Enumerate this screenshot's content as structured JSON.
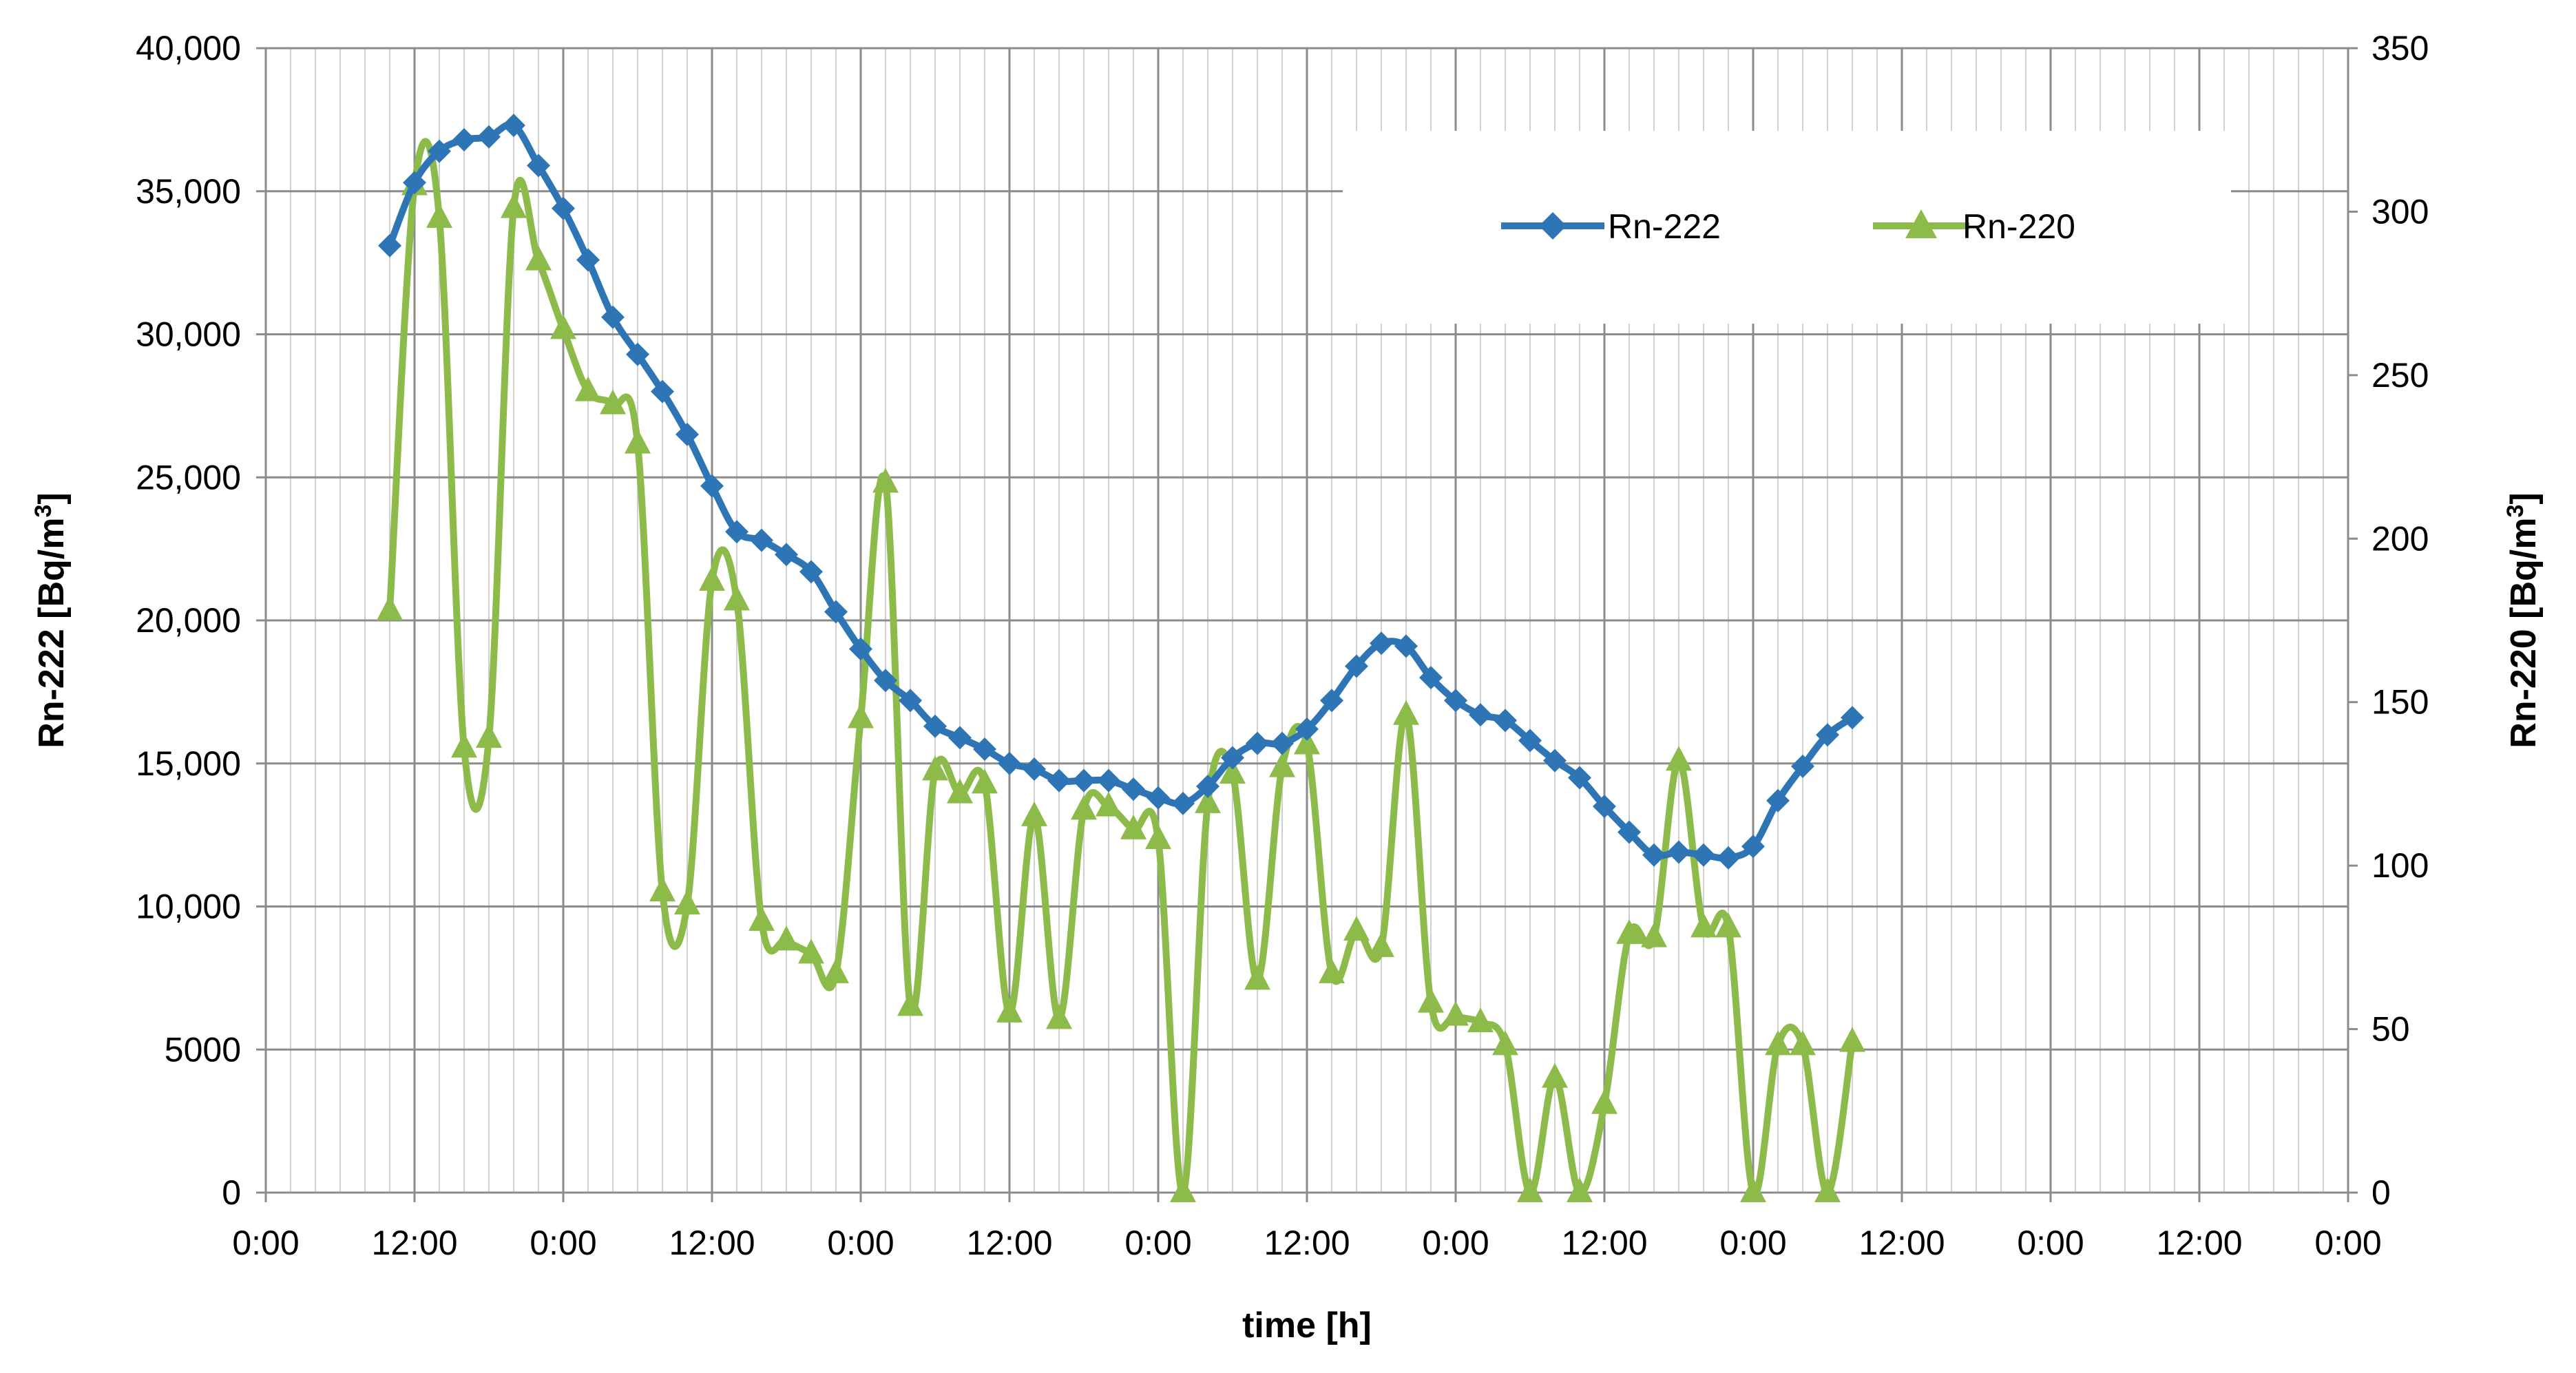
{
  "chart_data": {
    "type": "line",
    "xlabel": "time [h]",
    "ylabel": "Rn-222 [Bq/m",
    "ylabel_sup": "3",
    "ylabel_end": "]",
    "y2label": "Rn-220 [Bq/m",
    "y2label_sup": "3",
    "y2label_end": "]",
    "x_unit": "hours from first 0:00 tick",
    "xlim": [
      0,
      168
    ],
    "x_ticks": [
      {
        "x": 0,
        "label": "0:00"
      },
      {
        "x": 12,
        "label": "12:00"
      },
      {
        "x": 24,
        "label": "0:00"
      },
      {
        "x": 36,
        "label": "12:00"
      },
      {
        "x": 48,
        "label": "0:00"
      },
      {
        "x": 60,
        "label": "12:00"
      },
      {
        "x": 72,
        "label": "0:00"
      },
      {
        "x": 84,
        "label": "12:00"
      },
      {
        "x": 96,
        "label": "0:00"
      },
      {
        "x": 108,
        "label": "12:00"
      },
      {
        "x": 120,
        "label": "0:00"
      },
      {
        "x": 132,
        "label": "12:00"
      },
      {
        "x": 144,
        "label": "0:00"
      },
      {
        "x": 156,
        "label": "12:00"
      },
      {
        "x": 168,
        "label": "0:00"
      }
    ],
    "ylim": [
      0,
      40000
    ],
    "y_ticks": [
      {
        "v": 0,
        "label": "0"
      },
      {
        "v": 5000,
        "label": "5000"
      },
      {
        "v": 10000,
        "label": "10,000"
      },
      {
        "v": 15000,
        "label": "15,000"
      },
      {
        "v": 20000,
        "label": "20,000"
      },
      {
        "v": 25000,
        "label": "25,000"
      },
      {
        "v": 30000,
        "label": "30,000"
      },
      {
        "v": 35000,
        "label": "35,000"
      },
      {
        "v": 40000,
        "label": "40,000"
      }
    ],
    "y2lim": [
      0,
      350
    ],
    "y2_ticks": [
      {
        "v": 0,
        "label": "0"
      },
      {
        "v": 50,
        "label": "50"
      },
      {
        "v": 100,
        "label": "100"
      },
      {
        "v": 150,
        "label": "150"
      },
      {
        "v": 200,
        "label": "200"
      },
      {
        "v": 250,
        "label": "250"
      },
      {
        "v": 300,
        "label": "300"
      },
      {
        "v": 350,
        "label": "350"
      }
    ],
    "grid": true,
    "legend": "top-right",
    "series": [
      {
        "name": "Rn-222",
        "axis": "left",
        "color": "#2e75b6",
        "marker": "diamond",
        "x": [
          10,
          12,
          14,
          16,
          18,
          20,
          22,
          24,
          26,
          28,
          30,
          32,
          34,
          36,
          38,
          40,
          42,
          44,
          46,
          48,
          50,
          52,
          54,
          56,
          58,
          60,
          62,
          64,
          66,
          68,
          70,
          72,
          74,
          76,
          78,
          80,
          82,
          84,
          86,
          88,
          90,
          92,
          94,
          96,
          98,
          100,
          102,
          104,
          106,
          108,
          110,
          112,
          114,
          116,
          118,
          120,
          122,
          124,
          126,
          128
        ],
        "values": [
          33100,
          35300,
          36400,
          36800,
          36900,
          37300,
          35900,
          34400,
          32600,
          30600,
          29300,
          28000,
          26500,
          24700,
          23100,
          22800,
          22300,
          21700,
          20300,
          19000,
          17900,
          17200,
          16300,
          15900,
          15500,
          15000,
          14800,
          14400,
          14400,
          14400,
          14100,
          13800,
          13600,
          14200,
          15200,
          15700,
          15700,
          16200,
          17200,
          18400,
          19200,
          19100,
          18000,
          17200,
          16700,
          16500,
          15800,
          15100,
          14500,
          13500,
          12600,
          11800,
          11900,
          11800,
          11700,
          12100,
          13700,
          14900,
          16000,
          16600
        ]
      },
      {
        "name": "Rn-220",
        "axis": "right",
        "color": "#8dbb4a",
        "marker": "triangle",
        "x": [
          10,
          12,
          14,
          16,
          18,
          20,
          22,
          24,
          26,
          28,
          30,
          32,
          34,
          36,
          38,
          40,
          42,
          44,
          46,
          48,
          50,
          52,
          54,
          56,
          58,
          60,
          62,
          64,
          66,
          68,
          70,
          72,
          74,
          76,
          78,
          80,
          82,
          84,
          86,
          88,
          90,
          92,
          94,
          96,
          98,
          100,
          102,
          104,
          106,
          108,
          110,
          112,
          114,
          116,
          118,
          120,
          122,
          124,
          126,
          128
        ],
        "values": [
          178,
          308,
          298,
          136,
          139,
          301,
          285,
          264,
          245,
          241,
          229,
          92,
          88,
          187,
          181,
          83,
          77,
          73,
          67,
          145,
          217,
          57,
          129,
          122,
          125,
          55,
          115,
          53,
          117,
          118,
          111,
          108,
          0,
          119,
          128,
          65,
          130,
          137,
          67,
          80,
          75,
          146,
          58,
          54,
          52,
          45,
          0,
          35,
          0,
          27,
          79,
          78,
          132,
          81,
          81,
          0,
          45,
          45,
          0,
          46
        ]
      }
    ]
  }
}
